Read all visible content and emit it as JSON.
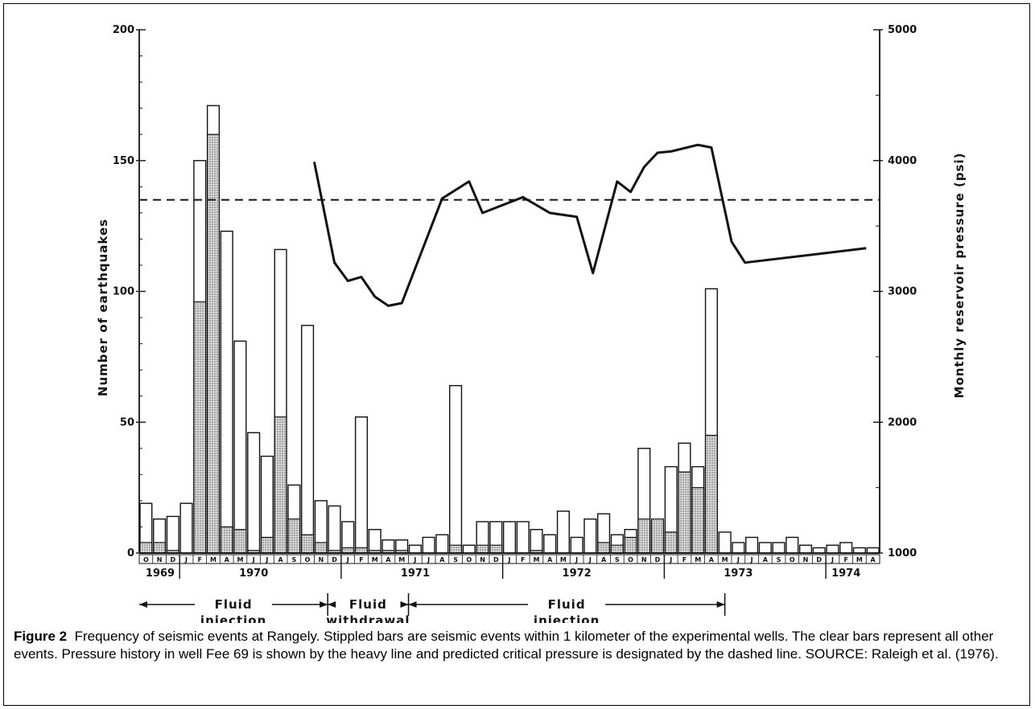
{
  "chart_data": {
    "type": "bar",
    "ylabel_left": "Number of earthquakes",
    "ylabel_right": "Monthly reservoir pressure (psi)",
    "ylim_left": [
      0,
      200
    ],
    "ylim_right": [
      1000,
      5000
    ],
    "yticks_left": [
      "0",
      "50",
      "100",
      "150",
      "200"
    ],
    "yticks_right": [
      "1000",
      "2000",
      "3000",
      "4000",
      "5000"
    ],
    "categories": [
      "O",
      "N",
      "D",
      "J",
      "F",
      "M",
      "A",
      "M",
      "J",
      "J",
      "A",
      "S",
      "O",
      "N",
      "D",
      "J",
      "F",
      "M",
      "A",
      "M",
      "J",
      "J",
      "A",
      "S",
      "O",
      "N",
      "D",
      "J",
      "F",
      "M",
      "A",
      "M",
      "J",
      "J",
      "A",
      "S",
      "O",
      "N",
      "D",
      "J",
      "F",
      "M",
      "A",
      "M",
      "J",
      "J",
      "A",
      "S",
      "O",
      "N",
      "D",
      "J",
      "F",
      "M",
      "A"
    ],
    "years": [
      {
        "label": "1969",
        "index": 1
      },
      {
        "label": "1970",
        "index": 8
      },
      {
        "label": "1971",
        "index": 20
      },
      {
        "label": "1972",
        "index": 32
      },
      {
        "label": "1973",
        "index": 44
      },
      {
        "label": "1974",
        "index": 52
      }
    ],
    "series": [
      {
        "values": [
          19,
          13,
          14,
          19,
          150,
          171,
          123,
          81,
          46,
          37,
          116,
          26,
          87,
          20,
          18,
          12,
          52,
          9,
          5,
          5,
          3,
          6,
          7,
          64,
          3,
          12,
          12,
          12,
          12,
          9,
          7,
          16,
          6,
          13,
          15,
          7,
          9,
          40,
          12,
          33,
          42,
          33,
          101,
          8,
          4,
          6,
          4,
          4,
          6,
          3,
          2,
          3,
          4,
          2,
          2
        ]
      },
      {
        "values": [
          4,
          4,
          1,
          0,
          96,
          160,
          10,
          9,
          1,
          6,
          52,
          13,
          7,
          4,
          1,
          2,
          2,
          1,
          1,
          1,
          0,
          0,
          0,
          3,
          0,
          3,
          3,
          0,
          0,
          1,
          0,
          0,
          0,
          0,
          4,
          3,
          6,
          13,
          13,
          8,
          31,
          25,
          45,
          0,
          0,
          0,
          0,
          0,
          0,
          0,
          0,
          0,
          0,
          0,
          0
        ]
      }
    ],
    "pressure_line": [
      {
        "x": 13.0,
        "y": 3990
      },
      {
        "x": 14.5,
        "y": 3220
      },
      {
        "x": 15.5,
        "y": 3080
      },
      {
        "x": 16.5,
        "y": 3110
      },
      {
        "x": 17.5,
        "y": 2960
      },
      {
        "x": 18.5,
        "y": 2890
      },
      {
        "x": 19.5,
        "y": 2910
      },
      {
        "x": 22.5,
        "y": 3710
      },
      {
        "x": 24.5,
        "y": 3840
      },
      {
        "x": 25.5,
        "y": 3600
      },
      {
        "x": 28.5,
        "y": 3720
      },
      {
        "x": 30.5,
        "y": 3600
      },
      {
        "x": 32.5,
        "y": 3570
      },
      {
        "x": 33.7,
        "y": 3140
      },
      {
        "x": 35.5,
        "y": 3840
      },
      {
        "x": 36.5,
        "y": 3760
      },
      {
        "x": 37.5,
        "y": 3950
      },
      {
        "x": 38.5,
        "y": 4060
      },
      {
        "x": 39.5,
        "y": 4070
      },
      {
        "x": 41.5,
        "y": 4120
      },
      {
        "x": 42.5,
        "y": 4100
      },
      {
        "x": 44.0,
        "y": 3380
      },
      {
        "x": 45.0,
        "y": 3220
      },
      {
        "x": 54.0,
        "y": 3330
      }
    ],
    "critical_pressure": 3700,
    "phases": [
      {
        "label": [
          "Fluid",
          "injection"
        ],
        "from": 0.0,
        "to": 14.0
      },
      {
        "label": [
          "Fluid",
          "withdrawal"
        ],
        "from": 14.0,
        "to": 20.0
      },
      {
        "label": [
          "Fluid",
          "injection"
        ],
        "from": 20.0,
        "to": 43.5
      }
    ]
  },
  "caption": {
    "label": "Figure 2",
    "text": "Frequency of seismic events at Rangely.  Stippled bars are seismic events within 1 kilometer of the experimental wells.  The clear bars represent all other events.  Pressure history in well Fee 69 is shown by the heavy line and predicted critical pressure is designated by the dashed line. SOURCE: Raleigh et al. (1976)."
  }
}
